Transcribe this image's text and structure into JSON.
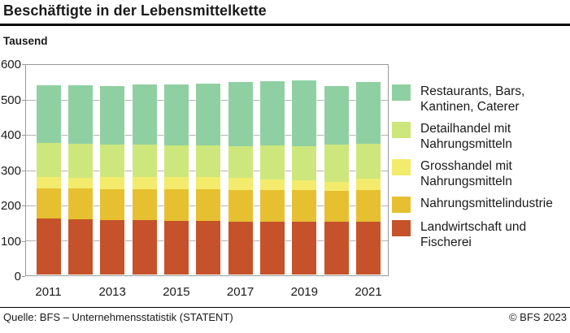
{
  "chart_data": {
    "type": "bar",
    "stacked": true,
    "title": "Beschäftigte in der Lebensmittelkette",
    "unit_label": "Tausend",
    "xlabel": "",
    "ylabel": "Tausend",
    "ylim": [
      0,
      600
    ],
    "yticks": [
      600,
      500,
      400,
      300,
      200,
      100,
      0
    ],
    "grid": "horizontal",
    "legend_position": "right",
    "categories": [
      "2011",
      "2012",
      "2013",
      "2014",
      "2015",
      "2016",
      "2017",
      "2018",
      "2019",
      "2020",
      "2021"
    ],
    "xtick_labels": [
      "2011",
      "2013",
      "2015",
      "2017",
      "2019",
      "2021"
    ],
    "series": [
      {
        "name": "Landwirtschaft und Fischerei",
        "color": "#c5522a",
        "values": [
          160,
          158,
          156,
          155,
          153,
          152,
          151,
          151,
          150,
          150,
          151
        ]
      },
      {
        "name": "Nahrungsmittelindustrie",
        "color": "#e6c030",
        "values": [
          86,
          87,
          88,
          89,
          91,
          92,
          91,
          90,
          90,
          89,
          89
        ]
      },
      {
        "name": "Grosshandel mit Nahrungsmitteln",
        "color": "#f3eb6b",
        "values": [
          31,
          30,
          33,
          33,
          33,
          33,
          33,
          30,
          28,
          26,
          33
        ]
      },
      {
        "name": "Detailhandel mit Nahrungsmitteln",
        "color": "#cde77c",
        "values": [
          98,
          98,
          94,
          94,
          92,
          92,
          92,
          98,
          98,
          105,
          101
        ]
      },
      {
        "name": "Restaurants, Bars, Kantinen, Caterer",
        "color": "#8fd0a2",
        "values": [
          165,
          166,
          167,
          172,
          173,
          176,
          181,
          182,
          187,
          167,
          176
        ]
      }
    ],
    "legend": [
      {
        "label": "Restaurants, Bars,\nKantinen, Caterer",
        "color": "#8fd0a2"
      },
      {
        "label": "Detailhandel mit\nNahrungsmitteln",
        "color": "#cde77c"
      },
      {
        "label": "Grosshandel mit\nNahrungsmitteln",
        "color": "#f3eb6b"
      },
      {
        "label": "Nahrungsmittelindustrie",
        "color": "#e6c030"
      },
      {
        "label": "Landwirtschaft und\nFischerei",
        "color": "#c5522a"
      }
    ],
    "colors": {
      "grid": "#b5b5b5",
      "plot_border": "#999999",
      "text": "#1a1a1a"
    }
  },
  "footer": {
    "source": "Quelle: BFS – Unternehmensstatistik (STATENT)",
    "copyright": "© BFS 2023"
  }
}
